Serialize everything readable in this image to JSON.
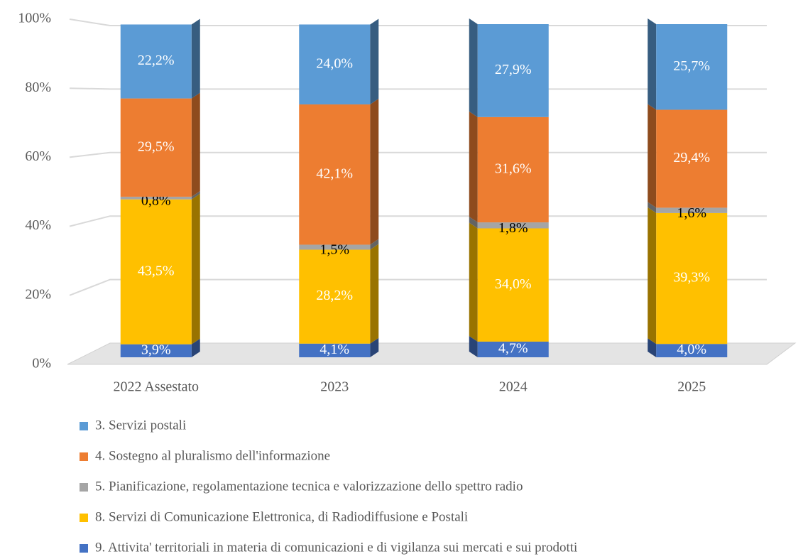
{
  "chart_data": {
    "type": "stacked_bar",
    "categories": [
      "2022 Assestato",
      "2023",
      "2024",
      "2025"
    ],
    "ylim": [
      0,
      100
    ],
    "yticks": [
      {
        "value": 0,
        "label": "0%"
      },
      {
        "value": 20,
        "label": "20%"
      },
      {
        "value": 40,
        "label": "40%"
      },
      {
        "value": 60,
        "label": "60%"
      },
      {
        "value": 80,
        "label": "80%"
      },
      {
        "value": 100,
        "label": "100%"
      }
    ],
    "grid": true,
    "legend": "bottom",
    "series": [
      {
        "name": "3. Servizi postali",
        "color": "#5b9bd5",
        "label_color": "#ffffff",
        "values": [
          22.2,
          24.0,
          27.9,
          25.7
        ],
        "value_labels": [
          "22,2%",
          "24,0%",
          "27,9%",
          "25,7%"
        ]
      },
      {
        "name": "4. Sostegno al pluralismo dell'informazione",
        "color": "#ed7d31",
        "label_color": "#ffffff",
        "values": [
          29.5,
          42.1,
          31.6,
          29.4
        ],
        "value_labels": [
          "29,5%",
          "42,1%",
          "31,6%",
          "29,4%"
        ]
      },
      {
        "name": "5. Pianificazione, regolamentazione tecnica e valorizzazione dello spettro radio",
        "color": "#a5a5a5",
        "label_color": "#000000",
        "values": [
          0.8,
          1.5,
          1.8,
          1.6
        ],
        "value_labels": [
          "0,8%",
          "1,5%",
          "1,8%",
          "1,6%"
        ]
      },
      {
        "name": "8. Servizi di Comunicazione Elettronica, di Radiodiffusione e Postali",
        "color": "#ffc000",
        "label_color": "#ffffff",
        "values": [
          43.5,
          28.2,
          34.0,
          39.3
        ],
        "value_labels": [
          "43,5%",
          "28,2%",
          "34,0%",
          "39,3%"
        ]
      },
      {
        "name": "9. Attivita' territoriali in materia di comunicazioni e di vigilanza sui mercati e sui prodotti",
        "color": "#4472c4",
        "label_color": "#ffffff",
        "values": [
          3.9,
          4.1,
          4.7,
          4.0
        ],
        "value_labels": [
          "3,9%",
          "4,1%",
          "4,7%",
          "4,0%"
        ]
      }
    ]
  }
}
